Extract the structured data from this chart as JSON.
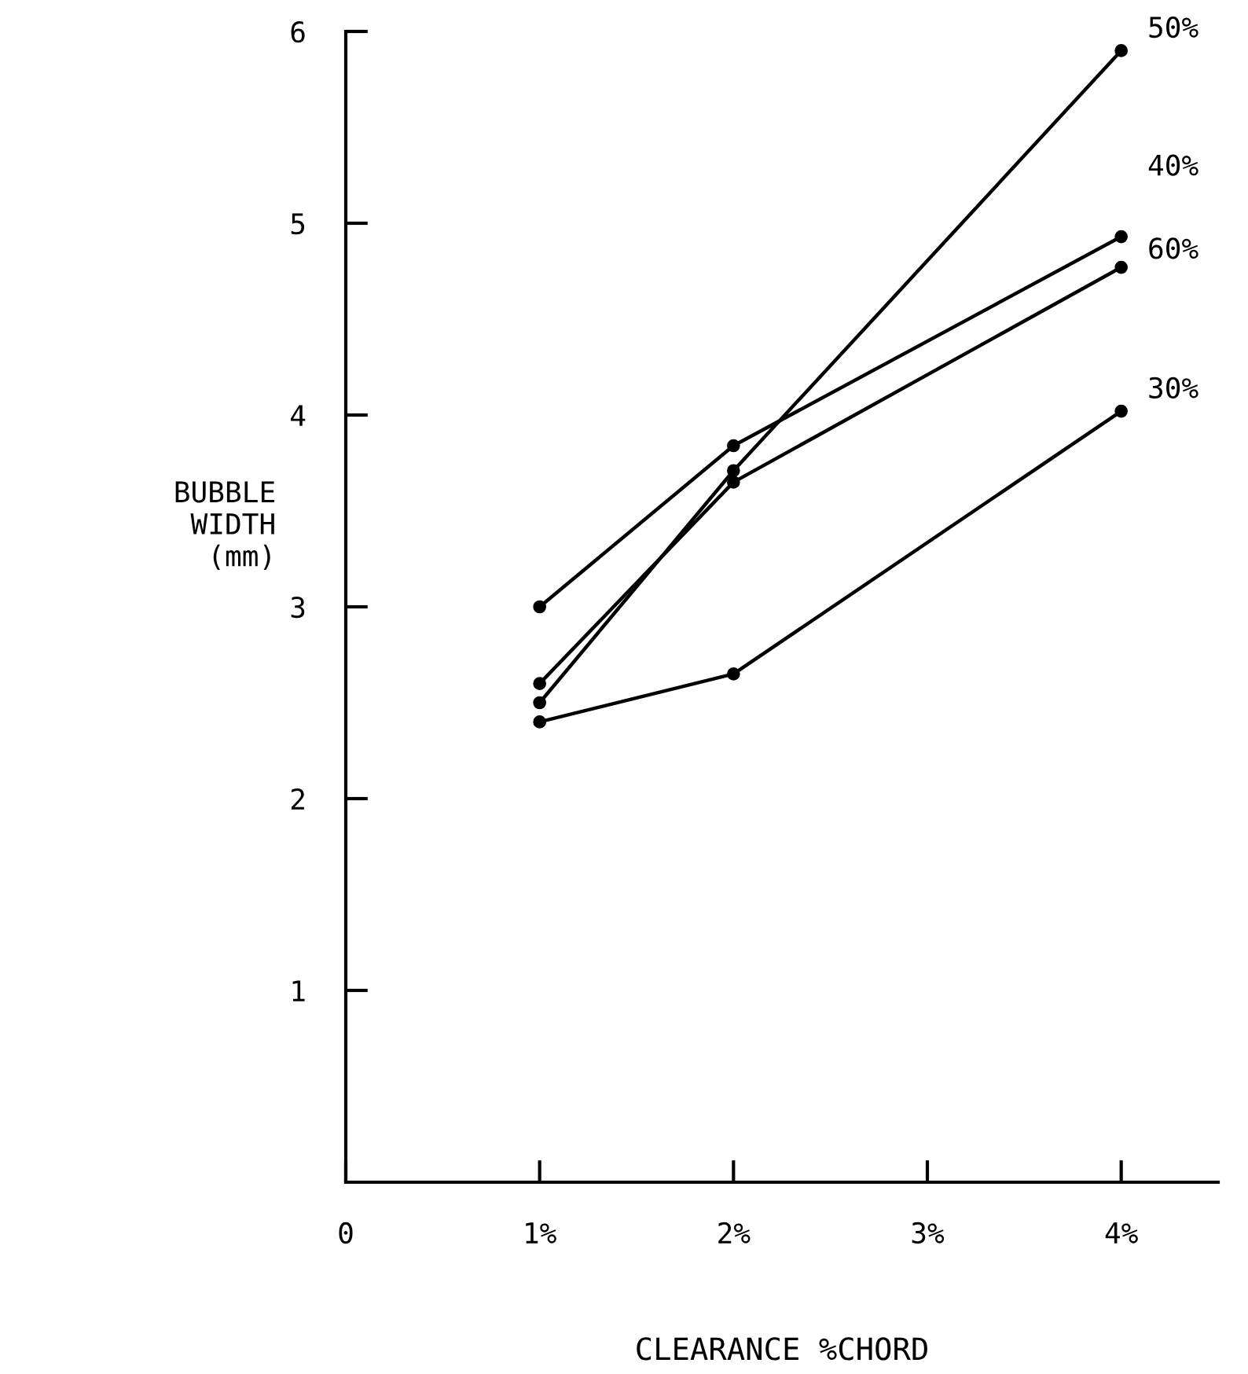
{
  "chart_data": {
    "type": "line",
    "xlabel": "CLEARANCE %CHORD",
    "ylabel": "BUBBLE\nWIDTH\n(mm)",
    "x": [
      1,
      2,
      4
    ],
    "series": [
      {
        "name": "50%",
        "color": "#000000",
        "values": [
          2.5,
          3.71,
          5.9
        ]
      },
      {
        "name": "40%",
        "color": "#000000",
        "values": [
          3.0,
          3.84,
          4.93
        ]
      },
      {
        "name": "60%",
        "color": "#000000",
        "values": [
          2.6,
          3.65,
          4.77
        ]
      },
      {
        "name": "30%",
        "color": "#000000",
        "values": [
          2.4,
          2.65,
          4.02
        ]
      }
    ],
    "xlim": [
      0,
      4.5
    ],
    "ylim": [
      0,
      6
    ],
    "xticks": [
      {
        "value": 0,
        "label": "0"
      },
      {
        "value": 1,
        "label": "1%"
      },
      {
        "value": 2,
        "label": "2%"
      },
      {
        "value": 3,
        "label": "3%"
      },
      {
        "value": 4,
        "label": "4%"
      }
    ],
    "yticks": [
      1,
      2,
      3,
      4,
      5,
      6
    ],
    "marker": "circle",
    "line_style": "solid",
    "grid": false,
    "legend": false
  }
}
